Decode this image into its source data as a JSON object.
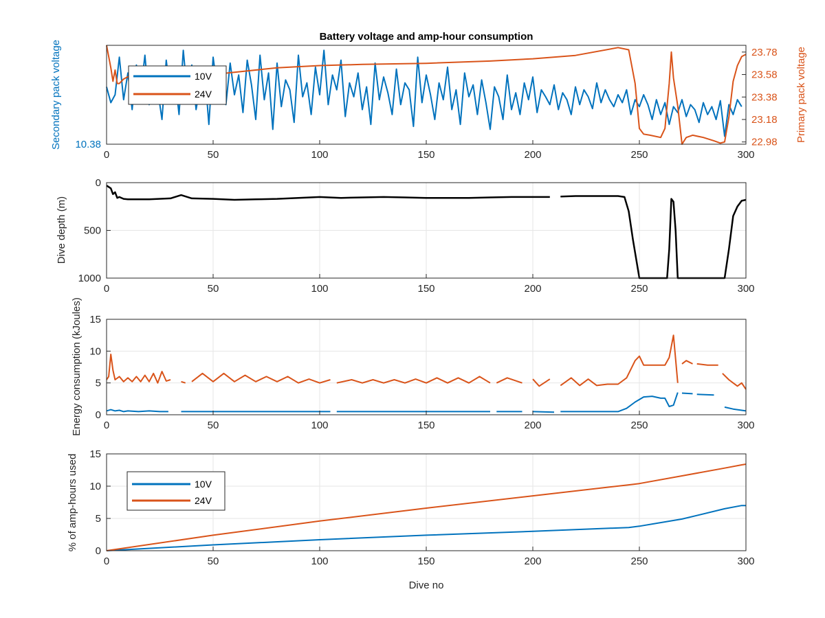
{
  "colors": {
    "blue": "#0072BD",
    "orange": "#D95319",
    "black": "#000000",
    "grid": "#e6e6e6",
    "axis": "#262626"
  },
  "chart_data": [
    {
      "type": "line",
      "title": "Battery voltage and amp-hour consumption",
      "xlabel": "",
      "ylabel_left": "Secondary pack voltage",
      "ylabel_right": "Primary pack voltage",
      "xlim": [
        0,
        300
      ],
      "xticks": [
        0,
        50,
        100,
        150,
        200,
        250,
        300
      ],
      "yticks_left": [
        10.38
      ],
      "yticks_right": [
        22.98,
        23.18,
        23.38,
        23.58,
        23.78
      ],
      "ylim_right": [
        22.96,
        23.84
      ],
      "grid": false,
      "legend": {
        "position": "top-left",
        "entries": [
          "10V",
          "24V"
        ]
      },
      "series": [
        {
          "name": "10V",
          "axis": "left",
          "color": "blue",
          "y_normalized_of_left_axis": "ylim_left not printed; values sampled relative to visible range",
          "x": [
            0,
            2,
            4,
            6,
            8,
            10,
            12,
            14,
            16,
            18,
            20,
            22,
            24,
            26,
            28,
            30,
            32,
            34,
            36,
            38,
            40,
            42,
            44,
            46,
            48,
            50,
            52,
            54,
            56,
            58,
            60,
            62,
            64,
            66,
            68,
            70,
            72,
            74,
            76,
            78,
            80,
            82,
            84,
            86,
            88,
            90,
            92,
            94,
            96,
            98,
            100,
            102,
            104,
            106,
            108,
            110,
            112,
            114,
            116,
            118,
            120,
            122,
            124,
            126,
            128,
            130,
            132,
            134,
            136,
            138,
            140,
            142,
            144,
            146,
            148,
            150,
            152,
            154,
            156,
            158,
            160,
            162,
            164,
            166,
            168,
            170,
            172,
            174,
            176,
            178,
            180,
            182,
            184,
            186,
            188,
            190,
            192,
            194,
            196,
            198,
            200,
            202,
            204,
            206,
            208,
            210,
            212,
            214,
            216,
            218,
            220,
            222,
            224,
            226,
            228,
            230,
            232,
            234,
            236,
            238,
            240,
            242,
            244,
            246,
            248,
            250,
            252,
            254,
            256,
            258,
            260,
            262,
            264,
            266,
            268,
            270,
            272,
            274,
            276,
            278,
            280,
            282,
            284,
            286,
            288,
            290,
            292,
            294,
            296,
            298
          ],
          "y": [
            0.58,
            0.42,
            0.5,
            0.88,
            0.45,
            0.72,
            0.35,
            0.8,
            0.52,
            0.9,
            0.4,
            0.78,
            0.55,
            0.25,
            0.85,
            0.5,
            0.7,
            0.3,
            0.95,
            0.48,
            0.8,
            0.35,
            0.6,
            0.75,
            0.2,
            0.88,
            0.55,
            0.68,
            0.4,
            0.82,
            0.5,
            0.7,
            0.32,
            0.85,
            0.6,
            0.25,
            0.9,
            0.45,
            0.72,
            0.15,
            0.82,
            0.38,
            0.65,
            0.55,
            0.22,
            0.9,
            0.48,
            0.62,
            0.3,
            0.78,
            0.5,
            0.95,
            0.4,
            0.7,
            0.55,
            0.85,
            0.28,
            0.62,
            0.48,
            0.72,
            0.35,
            0.58,
            0.2,
            0.82,
            0.45,
            0.68,
            0.52,
            0.3,
            0.76,
            0.4,
            0.62,
            0.55,
            0.18,
            0.88,
            0.42,
            0.7,
            0.5,
            0.25,
            0.62,
            0.45,
            0.78,
            0.35,
            0.55,
            0.2,
            0.72,
            0.48,
            0.6,
            0.3,
            0.65,
            0.42,
            0.15,
            0.58,
            0.48,
            0.25,
            0.7,
            0.35,
            0.52,
            0.3,
            0.62,
            0.45,
            0.68,
            0.32,
            0.55,
            0.48,
            0.4,
            0.6,
            0.35,
            0.52,
            0.45,
            0.3,
            0.58,
            0.4,
            0.55,
            0.48,
            0.36,
            0.62,
            0.42,
            0.55,
            0.45,
            0.38,
            0.5,
            0.42,
            0.55,
            0.3,
            0.45,
            0.38,
            0.5,
            0.4,
            0.25,
            0.45,
            0.3,
            0.42,
            0.2,
            0.38,
            0.32,
            0.45,
            0.28,
            0.4,
            0.35,
            0.22,
            0.42,
            0.3,
            0.38,
            0.25,
            0.44,
            0.08,
            0.4,
            0.3,
            0.45,
            0.38
          ]
        },
        {
          "name": "24V",
          "axis": "right",
          "color": "orange",
          "x": [
            0,
            2,
            3,
            4,
            5,
            6,
            8,
            10,
            20,
            40,
            60,
            80,
            100,
            120,
            150,
            180,
            200,
            220,
            240,
            245,
            248,
            250,
            252,
            255,
            260,
            262,
            264,
            265,
            266,
            268,
            270,
            272,
            275,
            280,
            285,
            288,
            290,
            292,
            294,
            296,
            298,
            300
          ],
          "y": [
            23.84,
            23.64,
            23.52,
            23.62,
            23.5,
            23.5,
            23.54,
            23.56,
            23.58,
            23.56,
            23.6,
            23.64,
            23.66,
            23.67,
            23.68,
            23.7,
            23.72,
            23.75,
            23.82,
            23.8,
            23.5,
            23.1,
            23.05,
            23.04,
            23.02,
            23.1,
            23.5,
            23.78,
            23.55,
            23.3,
            22.96,
            23.02,
            23.04,
            23.02,
            22.99,
            22.97,
            22.98,
            23.2,
            23.52,
            23.66,
            23.74,
            23.76
          ]
        }
      ]
    },
    {
      "type": "line",
      "title": "",
      "xlabel": "",
      "ylabel": "Dive depth (m)",
      "xlim": [
        0,
        300
      ],
      "ylim": [
        0,
        1000
      ],
      "y_reversed": true,
      "xticks": [
        0,
        50,
        100,
        150,
        200,
        250,
        300
      ],
      "yticks": [
        0,
        500,
        1000
      ],
      "ytick_labels": [
        "0",
        "500",
        "1000"
      ],
      "grid": true,
      "series": [
        {
          "color": "black",
          "x": [
            0,
            2,
            3,
            4,
            5,
            6,
            8,
            10,
            20,
            30,
            35,
            40,
            50,
            60,
            70,
            80,
            90,
            100,
            110,
            120,
            130,
            140,
            150,
            160,
            170,
            180,
            190,
            200,
            205,
            208,
            null,
            213,
            220,
            230,
            240,
            243,
            245,
            247,
            250,
            255,
            260,
            262,
            263,
            264,
            265,
            266,
            267,
            268,
            269,
            270,
            275,
            280,
            285,
            288,
            290,
            292,
            294,
            296,
            298,
            300
          ],
          "y": [
            30,
            60,
            120,
            100,
            160,
            150,
            170,
            175,
            175,
            165,
            130,
            165,
            170,
            180,
            175,
            170,
            160,
            150,
            160,
            155,
            150,
            155,
            160,
            160,
            160,
            155,
            150,
            150,
            150,
            150,
            null,
            145,
            140,
            140,
            140,
            150,
            300,
            600,
            1000,
            1000,
            1000,
            1000,
            1000,
            700,
            170,
            200,
            500,
            1000,
            1000,
            1000,
            1000,
            1000,
            1000,
            1000,
            1000,
            700,
            350,
            250,
            190,
            180
          ]
        }
      ]
    },
    {
      "type": "line",
      "title": "",
      "xlabel": "",
      "ylabel": "Energy consumption (kJoules)",
      "xlim": [
        0,
        300
      ],
      "ylim": [
        0,
        15
      ],
      "xticks": [
        0,
        50,
        100,
        150,
        200,
        250,
        300
      ],
      "yticks": [
        0,
        5,
        10,
        15
      ],
      "grid": true,
      "series": [
        {
          "color": "blue",
          "x": [
            0,
            2,
            4,
            6,
            8,
            10,
            15,
            20,
            25,
            29,
            null,
            35,
            40,
            50,
            60,
            70,
            80,
            90,
            100,
            105,
            null,
            108,
            120,
            140,
            160,
            175,
            180,
            null,
            183,
            195,
            null,
            200,
            210,
            null,
            213,
            230,
            240,
            244,
            248,
            252,
            256,
            260,
            262,
            264,
            266,
            268,
            null,
            270,
            275,
            null,
            277,
            285,
            null,
            290,
            294,
            298,
            300
          ],
          "y": [
            0.6,
            0.8,
            0.6,
            0.7,
            0.5,
            0.6,
            0.5,
            0.6,
            0.5,
            0.5,
            null,
            0.5,
            0.5,
            0.5,
            0.5,
            0.5,
            0.5,
            0.5,
            0.5,
            0.5,
            null,
            0.5,
            0.5,
            0.5,
            0.5,
            0.5,
            0.5,
            null,
            0.5,
            0.5,
            null,
            0.5,
            0.4,
            null,
            0.5,
            0.5,
            0.5,
            1.0,
            2.0,
            2.8,
            2.9,
            2.6,
            2.6,
            1.3,
            1.5,
            3.5,
            null,
            3.4,
            3.3,
            null,
            3.2,
            3.1,
            null,
            1.2,
            0.9,
            0.7,
            0.6
          ]
        },
        {
          "color": "orange",
          "x": [
            0,
            1,
            2,
            3,
            4,
            6,
            8,
            10,
            12,
            14,
            16,
            18,
            20,
            22,
            24,
            26,
            28,
            30,
            null,
            35,
            37,
            null,
            40,
            45,
            50,
            55,
            60,
            65,
            70,
            75,
            80,
            85,
            90,
            95,
            100,
            105,
            null,
            108,
            115,
            120,
            125,
            130,
            135,
            140,
            145,
            150,
            155,
            160,
            165,
            170,
            175,
            180,
            null,
            183,
            188,
            195,
            null,
            200,
            203,
            208,
            null,
            213,
            218,
            222,
            226,
            230,
            235,
            240,
            244,
            248,
            250,
            252,
            256,
            260,
            262,
            264,
            266,
            268,
            null,
            270,
            272,
            275,
            null,
            277,
            282,
            287,
            null,
            289,
            292,
            294,
            296,
            298,
            300
          ],
          "y": [
            5.5,
            6,
            9.5,
            7,
            5.5,
            6,
            5.2,
            5.8,
            5.2,
            6.0,
            5.2,
            6.2,
            5.2,
            6.5,
            5.0,
            6.8,
            5.3,
            5.5,
            null,
            5.2,
            5.0,
            null,
            5.2,
            6.5,
            5.2,
            6.5,
            5.2,
            6.2,
            5.2,
            6.0,
            5.2,
            6.0,
            5.0,
            5.6,
            5.0,
            5.5,
            null,
            5.0,
            5.5,
            5.0,
            5.5,
            5.0,
            5.5,
            5.0,
            5.6,
            5.0,
            5.8,
            5.0,
            5.8,
            5.0,
            6.0,
            5.0,
            null,
            5.0,
            5.8,
            5.0,
            null,
            5.6,
            4.5,
            5.6,
            null,
            4.6,
            5.8,
            4.6,
            5.6,
            4.6,
            4.8,
            4.8,
            5.8,
            8.5,
            9.2,
            7.8,
            7.8,
            7.8,
            7.8,
            9.0,
            12.5,
            5.0,
            null,
            8.0,
            8.5,
            8.0,
            null,
            8.0,
            7.8,
            7.8,
            null,
            6.5,
            5.5,
            5.0,
            4.5,
            5.0,
            4.0
          ]
        }
      ]
    },
    {
      "type": "line",
      "title": "",
      "xlabel": "Dive no",
      "ylabel": "% of amp-hours used",
      "xlim": [
        0,
        300
      ],
      "ylim": [
        0,
        15
      ],
      "xticks": [
        0,
        50,
        100,
        150,
        200,
        250,
        300
      ],
      "yticks": [
        0,
        5,
        10,
        15
      ],
      "grid": true,
      "legend": {
        "position": "top-left",
        "entries": [
          "10V",
          "24V"
        ]
      },
      "series": [
        {
          "name": "10V",
          "color": "blue",
          "x": [
            0,
            50,
            100,
            150,
            200,
            245,
            250,
            270,
            290,
            298,
            300
          ],
          "y": [
            0,
            0.9,
            1.7,
            2.4,
            3.0,
            3.6,
            3.8,
            4.9,
            6.5,
            7.0,
            7.0
          ]
        },
        {
          "name": "24V",
          "color": "orange",
          "x": [
            0,
            50,
            100,
            150,
            200,
            245,
            250,
            270,
            290,
            298,
            300
          ],
          "y": [
            0,
            2.4,
            4.6,
            6.6,
            8.5,
            10.2,
            10.4,
            11.6,
            12.8,
            13.3,
            13.4
          ]
        }
      ]
    }
  ]
}
